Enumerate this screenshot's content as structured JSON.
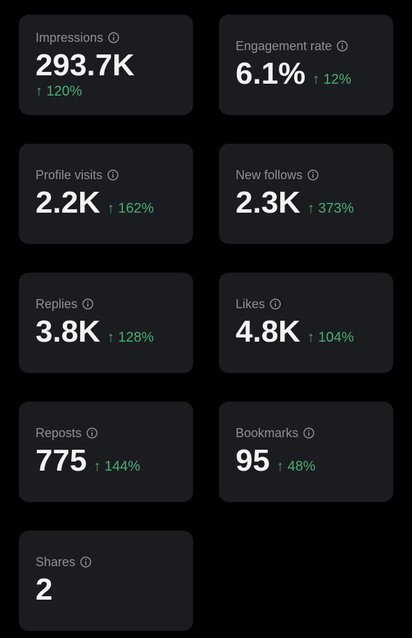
{
  "metrics": [
    {
      "label": "Impressions",
      "value": "293.7K",
      "change": "↑ 120%"
    },
    {
      "label": "Engagement rate",
      "value": "6.1%",
      "change": "↑ 12%"
    },
    {
      "label": "Profile visits",
      "value": "2.2K",
      "change": "↑ 162%"
    },
    {
      "label": "New follows",
      "value": "2.3K",
      "change": "↑ 373%"
    },
    {
      "label": "Replies",
      "value": "3.8K",
      "change": "↑ 128%"
    },
    {
      "label": "Likes",
      "value": "4.8K",
      "change": "↑ 104%"
    },
    {
      "label": "Reposts",
      "value": "775",
      "change": "↑ 144%"
    },
    {
      "label": "Bookmarks",
      "value": "95",
      "change": "↑ 48%"
    },
    {
      "label": "Shares",
      "value": "2"
    }
  ]
}
